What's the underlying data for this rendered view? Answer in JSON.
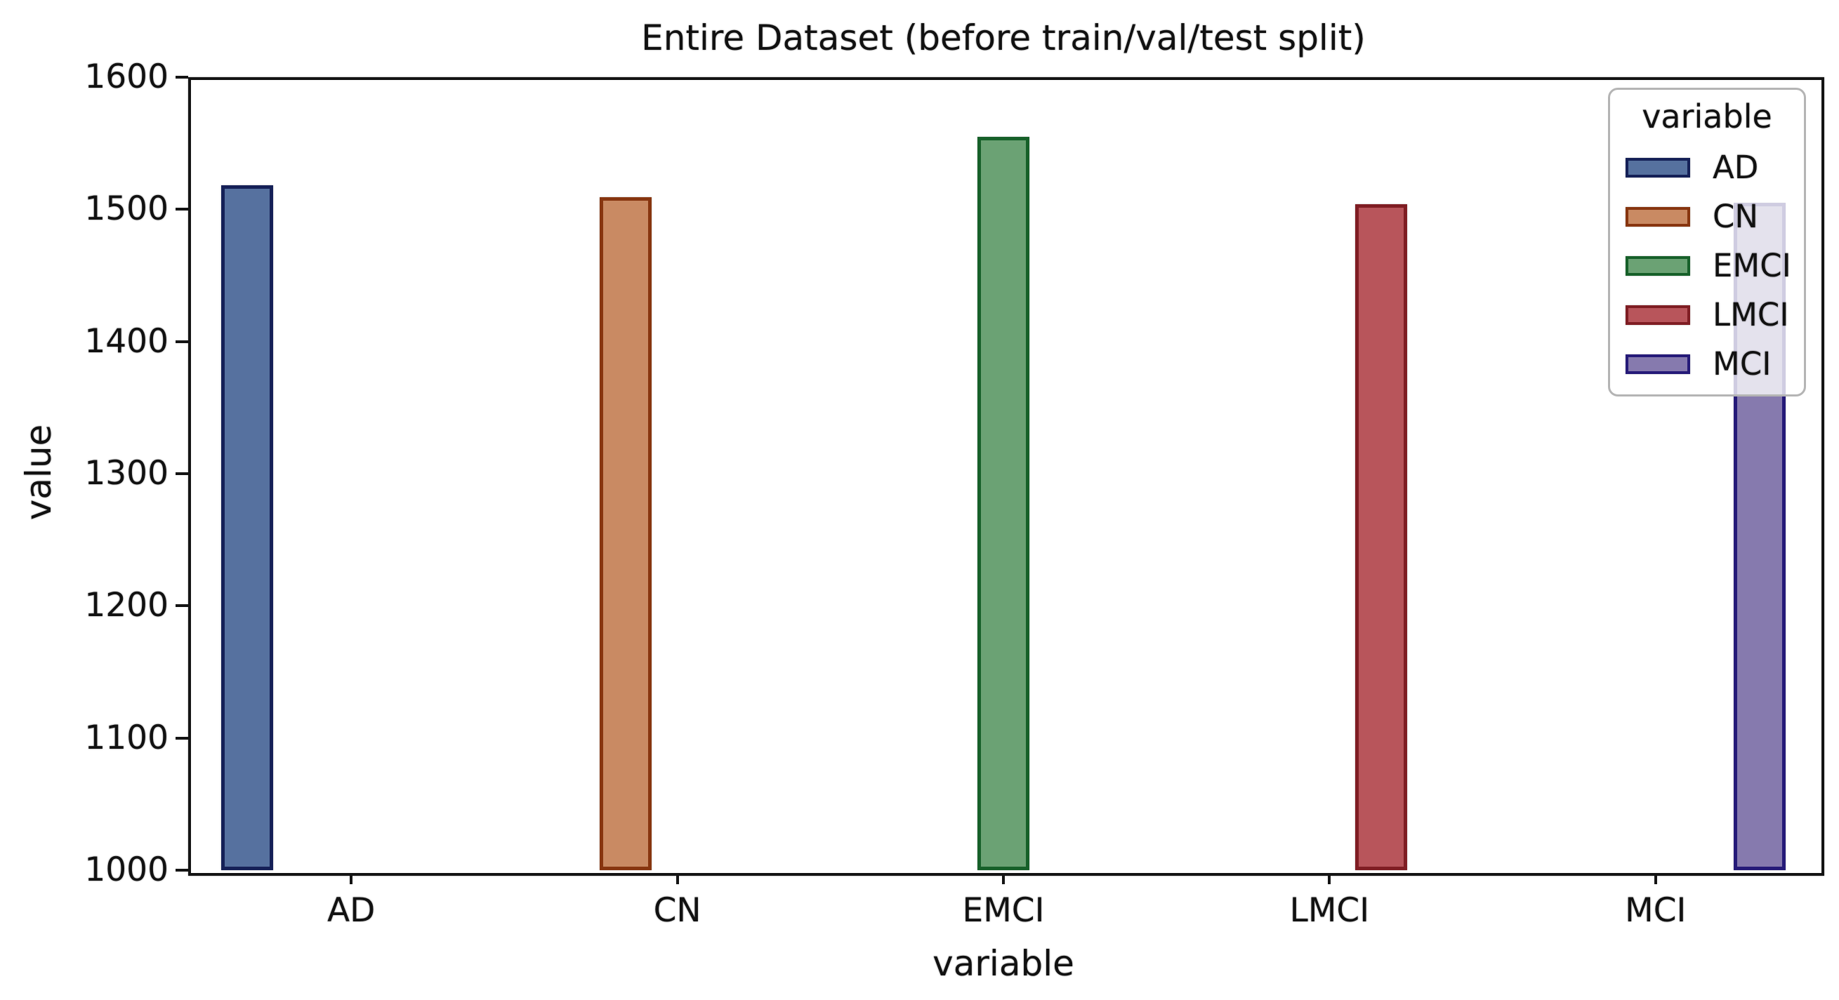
{
  "chart_data": {
    "type": "bar",
    "title": "Entire Dataset (before train/val/test split)",
    "xlabel": "variable",
    "ylabel": "value",
    "categories": [
      "AD",
      "CN",
      "EMCI",
      "LMCI",
      "MCI"
    ],
    "values": [
      1518,
      1509,
      1555,
      1504,
      1505
    ],
    "ylim": [
      1000,
      1600
    ],
    "yticks": [
      1000,
      1100,
      1200,
      1300,
      1400,
      1500,
      1600
    ],
    "grid": false,
    "legend": {
      "title": "variable",
      "position": "upper-right",
      "entries": [
        "AD",
        "CN",
        "EMCI",
        "LMCI",
        "MCI"
      ]
    },
    "bar_fill_colors": [
      "#56719f",
      "#c98a63",
      "#6ba274",
      "#b8555b",
      "#867aae"
    ],
    "bar_edge_colors": [
      "#152057",
      "#87350f",
      "#166029",
      "#7f1d23",
      "#251a78"
    ],
    "frame_color": "#141414"
  }
}
